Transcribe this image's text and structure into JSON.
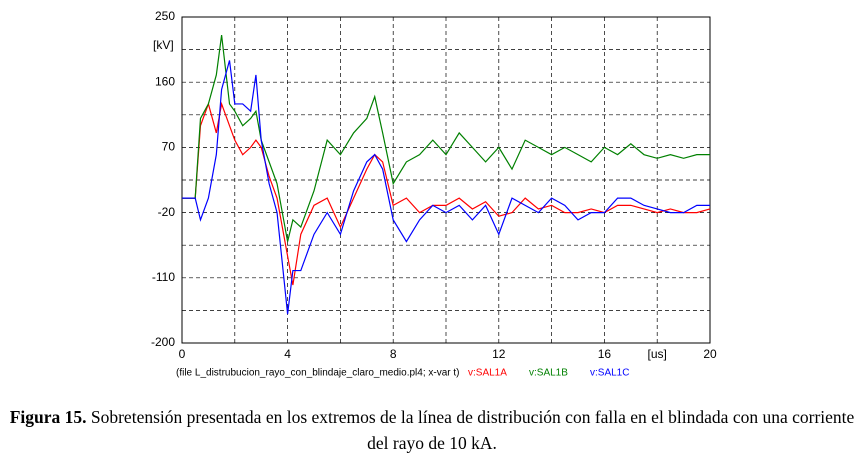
{
  "chart_data": {
    "type": "line",
    "y_unit": "[kV]",
    "x_unit": "[us]",
    "note": "(file L_distrubucion_rayo_con_blindaje_claro_medio.pl4; x-var t)",
    "x": [
      0,
      0.5,
      0.7,
      1,
      1.3,
      1.5,
      1.8,
      2,
      2.3,
      2.6,
      2.8,
      3,
      3.3,
      3.6,
      4,
      4.2,
      4.5,
      5,
      5.5,
      6,
      6.5,
      7,
      7.3,
      7.6,
      8,
      8.5,
      9,
      9.5,
      10,
      10.5,
      11,
      11.5,
      12,
      12.5,
      13,
      13.5,
      14,
      14.5,
      15,
      15.5,
      16,
      16.5,
      17,
      17.5,
      18,
      18.5,
      19,
      19.5,
      20
    ],
    "series": [
      {
        "name": "v:SAL1A",
        "color": "#ff0000",
        "values": [
          0,
          0,
          100,
          130,
          90,
          130,
          100,
          80,
          60,
          70,
          80,
          70,
          30,
          0,
          -80,
          -120,
          -50,
          -10,
          0,
          -40,
          0,
          40,
          60,
          50,
          -10,
          0,
          -20,
          -10,
          -10,
          0,
          -15,
          -5,
          -25,
          -20,
          0,
          -15,
          -10,
          -20,
          -20,
          -15,
          -20,
          -10,
          -10,
          -15,
          -20,
          -15,
          -20,
          -20,
          -15
        ]
      },
      {
        "name": "v:SAL1B",
        "color": "#008000",
        "values": [
          0,
          0,
          110,
          130,
          170,
          225,
          130,
          120,
          100,
          110,
          120,
          80,
          50,
          20,
          -60,
          -30,
          -40,
          10,
          80,
          60,
          90,
          110,
          140,
          90,
          20,
          50,
          60,
          80,
          60,
          90,
          70,
          50,
          70,
          40,
          80,
          70,
          60,
          70,
          60,
          50,
          70,
          60,
          75,
          60,
          55,
          60,
          55,
          60,
          60
        ]
      },
      {
        "name": "v:SAL1C",
        "color": "#0000ff",
        "values": [
          0,
          0,
          -30,
          0,
          60,
          150,
          190,
          130,
          130,
          120,
          170,
          80,
          20,
          -20,
          -160,
          -100,
          -100,
          -50,
          -20,
          -50,
          10,
          50,
          60,
          40,
          -30,
          -60,
          -30,
          -10,
          -20,
          -10,
          -30,
          -10,
          -50,
          0,
          -10,
          -20,
          0,
          -10,
          -30,
          -20,
          -20,
          0,
          0,
          -10,
          -15,
          -20,
          -20,
          -10,
          -10
        ]
      }
    ],
    "xlim": [
      0,
      20
    ],
    "xticks": [
      0,
      4,
      8,
      12,
      16,
      20
    ],
    "x_minor_grid": [
      2,
      6,
      10,
      14,
      18
    ],
    "ylim": [
      -200,
      250
    ],
    "yticks": [
      -200,
      -110,
      -20,
      70,
      160,
      250
    ],
    "y_minor_grid": [
      -155,
      -65,
      25,
      115,
      205
    ],
    "grid": true,
    "caption": {
      "label": "Figura 15.",
      "text": " Sobretensión presentada en los extremos de la línea de distribución con falla en el blindada con una corriente del rayo de 10 kA."
    }
  }
}
